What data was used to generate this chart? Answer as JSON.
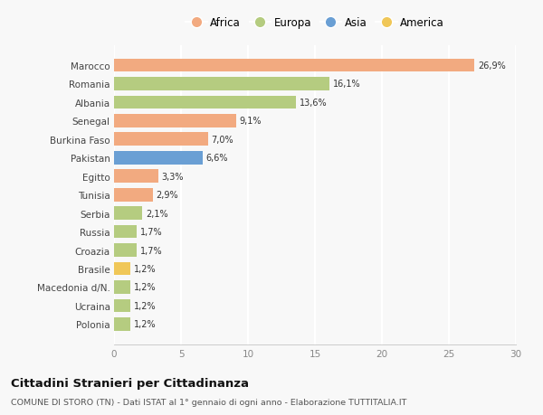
{
  "categories": [
    "Polonia",
    "Ucraina",
    "Macedonia d/N.",
    "Brasile",
    "Croazia",
    "Russia",
    "Serbia",
    "Tunisia",
    "Egitto",
    "Pakistan",
    "Burkina Faso",
    "Senegal",
    "Albania",
    "Romania",
    "Marocco"
  ],
  "values": [
    1.2,
    1.2,
    1.2,
    1.2,
    1.7,
    1.7,
    2.1,
    2.9,
    3.3,
    6.6,
    7.0,
    9.1,
    13.6,
    16.1,
    26.9
  ],
  "colors": [
    "#b5cc80",
    "#b5cc80",
    "#b5cc80",
    "#f0c758",
    "#b5cc80",
    "#b5cc80",
    "#b5cc80",
    "#f2aa80",
    "#f2aa80",
    "#6a9fd4",
    "#f2aa80",
    "#f2aa80",
    "#b5cc80",
    "#b5cc80",
    "#f2aa80"
  ],
  "labels": [
    "1,2%",
    "1,2%",
    "1,2%",
    "1,2%",
    "1,7%",
    "1,7%",
    "2,1%",
    "2,9%",
    "3,3%",
    "6,6%",
    "7,0%",
    "9,1%",
    "13,6%",
    "16,1%",
    "26,9%"
  ],
  "legend": [
    {
      "label": "Africa",
      "color": "#f2aa80"
    },
    {
      "label": "Europa",
      "color": "#b5cc80"
    },
    {
      "label": "Asia",
      "color": "#6a9fd4"
    },
    {
      "label": "America",
      "color": "#f0c758"
    }
  ],
  "xlim": [
    0,
    30
  ],
  "xticks": [
    0,
    5,
    10,
    15,
    20,
    25,
    30
  ],
  "title": "Cittadini Stranieri per Cittadinanza",
  "subtitle": "COMUNE DI STORO (TN) - Dati ISTAT al 1° gennaio di ogni anno - Elaborazione TUTTITALIA.IT",
  "bg_color": "#f8f8f8",
  "grid_color": "#ffffff",
  "bar_height": 0.72
}
